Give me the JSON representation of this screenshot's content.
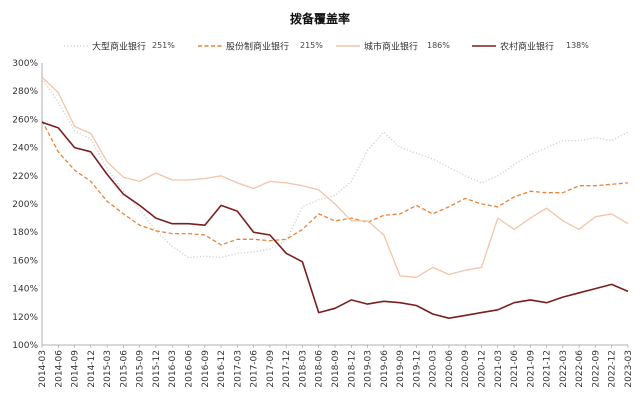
{
  "chart_data": {
    "type": "line",
    "title": "拨备覆盖率",
    "xlabel": "",
    "ylabel": "",
    "ylim": [
      100,
      300
    ],
    "yticks": [
      "100%",
      "120%",
      "140%",
      "160%",
      "180%",
      "200%",
      "220%",
      "240%",
      "260%",
      "280%",
      "300%"
    ],
    "grid": false,
    "legend_position": "top",
    "categories": [
      "2014-03",
      "2014-06",
      "2014-09",
      "2014-12",
      "2015-03",
      "2015-06",
      "2015-09",
      "2015-12",
      "2016-03",
      "2016-06",
      "2016-09",
      "2016-12",
      "2017-03",
      "2017-06",
      "2017-09",
      "2017-12",
      "2018-03",
      "2018-06",
      "2018-09",
      "2018-12",
      "2019-03",
      "2019-06",
      "2019-09",
      "2019-12",
      "2020-03",
      "2020-06",
      "2020-09",
      "2020-12",
      "2021-03",
      "2021-06",
      "2021-09",
      "2021-12",
      "2022-03",
      "2022-06",
      "2022-09",
      "2022-12",
      "2023-03"
    ],
    "series": [
      {
        "name": "大型商业银行",
        "end_label": "251%",
        "color": "#d0d0d0",
        "style": "dotted",
        "values": [
          289,
          272,
          252,
          246,
          225,
          209,
          196,
          181,
          170,
          162,
          163,
          162,
          165,
          166,
          168,
          174,
          198,
          203,
          206,
          216,
          238,
          251,
          240,
          236,
          232,
          226,
          220,
          215,
          220,
          228,
          235,
          240,
          245,
          245,
          247,
          245,
          251
        ]
      },
      {
        "name": "股份制商业银行",
        "end_label": "215%",
        "color": "#e8833a",
        "style": "dashed",
        "values": [
          259,
          237,
          224,
          216,
          202,
          193,
          185,
          181,
          179,
          179,
          178,
          171,
          175,
          175,
          174,
          175,
          182,
          193,
          188,
          190,
          187,
          192,
          193,
          199,
          193,
          198,
          204,
          200,
          198,
          205,
          209,
          208,
          208,
          213,
          213,
          214,
          215
        ]
      },
      {
        "name": "城市商业银行",
        "end_label": "186%",
        "color": "#f2c4a8",
        "style": "solid",
        "values": [
          290,
          279,
          255,
          250,
          230,
          219,
          216,
          222,
          217,
          217,
          218,
          220,
          215,
          211,
          216,
          215,
          213,
          210,
          200,
          188,
          188,
          178,
          149,
          148,
          155,
          150,
          153,
          155,
          190,
          182,
          190,
          197,
          188,
          182,
          191,
          193,
          186
        ]
      },
      {
        "name": "农村商业银行",
        "end_label": "138%",
        "color": "#7a1f1f",
        "style": "solid",
        "values": [
          258,
          254,
          240,
          237,
          221,
          207,
          199,
          190,
          186,
          186,
          185,
          199,
          195,
          180,
          178,
          165,
          159,
          123,
          126,
          132,
          129,
          131,
          130,
          128,
          122,
          119,
          121,
          123,
          125,
          130,
          132,
          130,
          134,
          137,
          140,
          143,
          138
        ]
      }
    ]
  }
}
